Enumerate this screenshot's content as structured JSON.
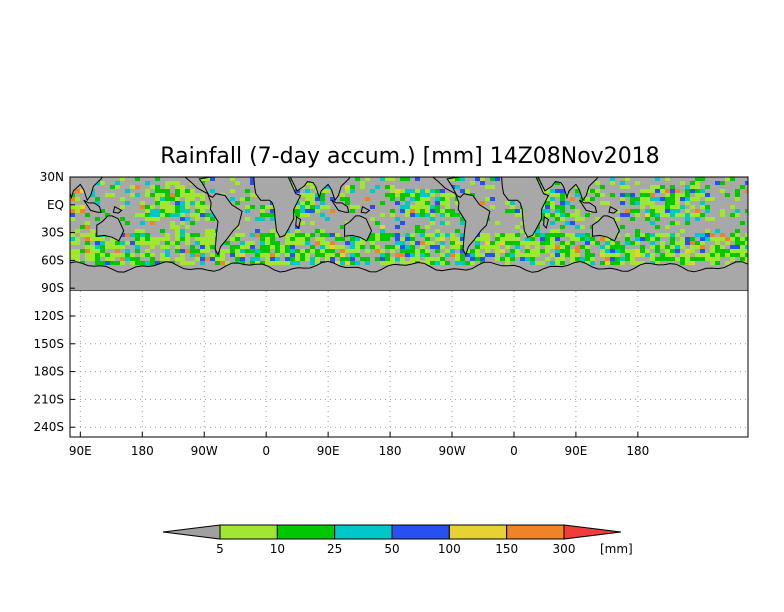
{
  "title": "Rainfall (7-day accum.) [mm] 14Z08Nov2018",
  "y_ticks": [
    "30N",
    "EQ",
    "30S",
    "60S",
    "90S",
    "120S",
    "150S",
    "180S",
    "210S",
    "240S"
  ],
  "x_ticks": [
    "90E",
    "180",
    "90W",
    "0",
    "90E",
    "180",
    "90W",
    "0",
    "90E",
    "180"
  ],
  "colorbar": {
    "unit": "[mm]",
    "labels": [
      "5",
      "10",
      "25",
      "50",
      "100",
      "150",
      "300"
    ],
    "colors": [
      "#a0a0a0",
      "#a0e632",
      "#00c800",
      "#00c8c8",
      "#2850f0",
      "#e6d232",
      "#f08228",
      "#f03c3c"
    ]
  },
  "map_colors": {
    "land": "#a8a8a8",
    "ocean_dry": "#a8a8a8",
    "antarctica": "#a8a8a8",
    "coast": "#000000"
  }
}
